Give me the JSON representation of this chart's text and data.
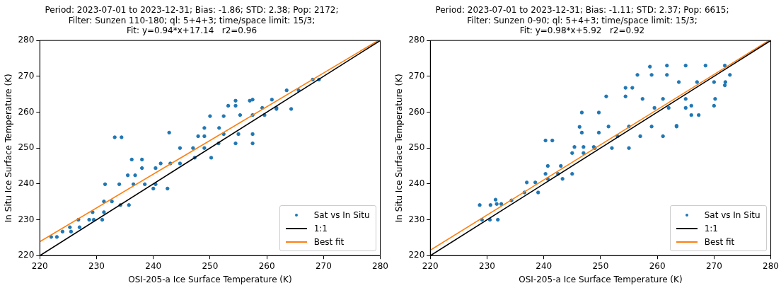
{
  "chart_data": [
    {
      "type": "scatter",
      "title": "Period: 2023-07-01 to 2023-12-31; Bias: -1.86; STD: 2.38; Pop: 2172;\nFilter: Sunzen 110-180; ql: 5+4+3; time/space limit: 15/3;\nFit: y=0.94*x+17.14   r2=0.96",
      "xlabel": "OSI-205-a Ice Surface Temperature (K)",
      "ylabel": "In Situ Ice Surface Temperature (K)",
      "xlim": [
        220,
        280
      ],
      "ylim": [
        220,
        280
      ],
      "xticks": [
        220,
        230,
        240,
        250,
        260,
        270,
        280
      ],
      "yticks": [
        220,
        230,
        240,
        250,
        260,
        270,
        280
      ],
      "grid": false,
      "legend": "bottom right",
      "series": [
        {
          "name": "Sat vs In Situ",
          "type": "scatter",
          "marker": "circle",
          "color": "#1f77b4",
          "x": [
            222,
            223,
            224,
            225.5,
            225.3,
            227,
            226.8,
            228.7,
            229.3,
            231.3,
            229.5,
            231,
            231.3,
            232.7,
            234.2,
            235.7,
            231.5,
            234,
            236.5,
            238.5,
            240.4,
            233.2,
            234.4,
            236.2,
            238,
            235.5,
            236.8,
            238,
            240.4,
            241.3,
            243,
            244.7,
            240,
            242.5,
            242.8,
            244.7,
            247,
            249,
            247.9,
            249,
            250,
            252.4,
            249,
            251.6,
            253.2,
            254.5,
            254.5,
            257,
            252.4,
            255,
            257.5,
            255.3,
            257.5,
            259.6,
            257.5,
            260.9,
            261.7,
            264.3,
            263.5,
            265.6,
            268.1,
            269.2,
            247.3,
            250.2,
            251.5,
            254.5,
            257.5,
            259.2,
            261.7
          ],
          "values": [
            225.2,
            225.2,
            226.7,
            226.7,
            227.9,
            227.9,
            230,
            230,
            232.1,
            232.1,
            230,
            230,
            235.1,
            235.1,
            234.1,
            234.1,
            239.9,
            239.9,
            239.9,
            239.9,
            239.9,
            253,
            253,
            246.8,
            246.8,
            242.4,
            242.4,
            244.4,
            244.4,
            245.7,
            245.7,
            245.7,
            238.7,
            238.7,
            254.3,
            250,
            250,
            250,
            253.3,
            253.3,
            258.9,
            258.9,
            255.6,
            255.6,
            261.8,
            261.8,
            263.2,
            263.2,
            253.9,
            253.9,
            253.9,
            259.2,
            259.2,
            259.2,
            263.5,
            263.5,
            260.9,
            260.9,
            266.1,
            266.1,
            269.1,
            269.1,
            247.3,
            247.3,
            251.3,
            251.3,
            251.3,
            261.2,
            261.2
          ]
        },
        {
          "name": "1:1",
          "type": "line",
          "color": "#000000",
          "x": [
            220,
            280
          ],
          "values": [
            220,
            280
          ]
        },
        {
          "name": "Best fit",
          "type": "line",
          "color": "#ff7f0e",
          "x": [
            220,
            279.64
          ],
          "values": [
            223.9,
            280
          ]
        }
      ]
    },
    {
      "type": "scatter",
      "title": "Period: 2023-07-01 to 2023-12-31; Bias: -1.11; STD: 2.37; Pop: 6615;\nFilter: Sunzen 0-90; ql: 5+4+3; time/space limit: 15/3;\nFit: y=0.98*x+5.92   r2=0.92",
      "xlabel": "OSI-205-a Ice Surface Temperature (K)",
      "ylabel": "In Situ Ice Surface Temperature (K)",
      "xlim": [
        220,
        280
      ],
      "ylim": [
        220,
        280
      ],
      "xticks": [
        220,
        230,
        240,
        250,
        260,
        270,
        280
      ],
      "yticks": [
        220,
        230,
        240,
        250,
        260,
        270,
        280
      ],
      "grid": false,
      "legend": "bottom right",
      "series": [
        {
          "name": "Sat vs In Situ",
          "type": "scatter",
          "marker": "circle",
          "color": "#1f77b4",
          "x": [
            228.7,
            230.6,
            229.1,
            230.5,
            231.9,
            231.5,
            231.7,
            232.5,
            234.3,
            236.6,
            239,
            237,
            238.5,
            240.3,
            241.5,
            240.3,
            242.5,
            245,
            240.7,
            243.3,
            240.7,
            243,
            245.4,
            247,
            248.8,
            245,
            247,
            246.3,
            246.7,
            249.7,
            246.7,
            249.7,
            249,
            252,
            255,
            251,
            254.4,
            251.4,
            255,
            259,
            263.4,
            253,
            257,
            261,
            254.4,
            255.6,
            256.5,
            259,
            261.7,
            257.4,
            261,
            265,
            270.2,
            258.7,
            261.7,
            265,
            268.5,
            271.9,
            263.8,
            267,
            270,
            272,
            259.5,
            262,
            265,
            266,
            270,
            271.9,
            272.8,
            266,
            267.3,
            263.4
          ],
          "values": [
            234.1,
            234.1,
            230,
            230,
            230,
            235.6,
            234.4,
            234.4,
            235.4,
            237.6,
            237.6,
            240.4,
            240.4,
            252.1,
            252.1,
            242.8,
            242.8,
            242.8,
            241.4,
            241.4,
            245,
            245,
            250.3,
            250.3,
            250.3,
            248.6,
            248.6,
            255.9,
            259.9,
            259.9,
            254.3,
            254.3,
            250,
            250,
            250,
            264.4,
            264.4,
            256,
            256,
            256,
            256,
            253.3,
            253.3,
            253.3,
            266.8,
            266.8,
            270.4,
            270.4,
            270.4,
            263.7,
            263.7,
            263.7,
            263.7,
            272.7,
            273,
            273,
            273,
            273,
            268.4,
            268.4,
            268.4,
            268.4,
            261.2,
            261.2,
            261.2,
            261.8,
            261.8,
            267.5,
            270.4,
            259.2,
            259.2,
            256.2
          ]
        },
        {
          "name": "1:1",
          "type": "line",
          "color": "#000000",
          "x": [
            220,
            280
          ],
          "values": [
            220,
            280
          ]
        },
        {
          "name": "Best fit",
          "type": "line",
          "color": "#ff7f0e",
          "x": [
            220,
            279.67
          ],
          "values": [
            221.5,
            280
          ]
        }
      ]
    }
  ]
}
